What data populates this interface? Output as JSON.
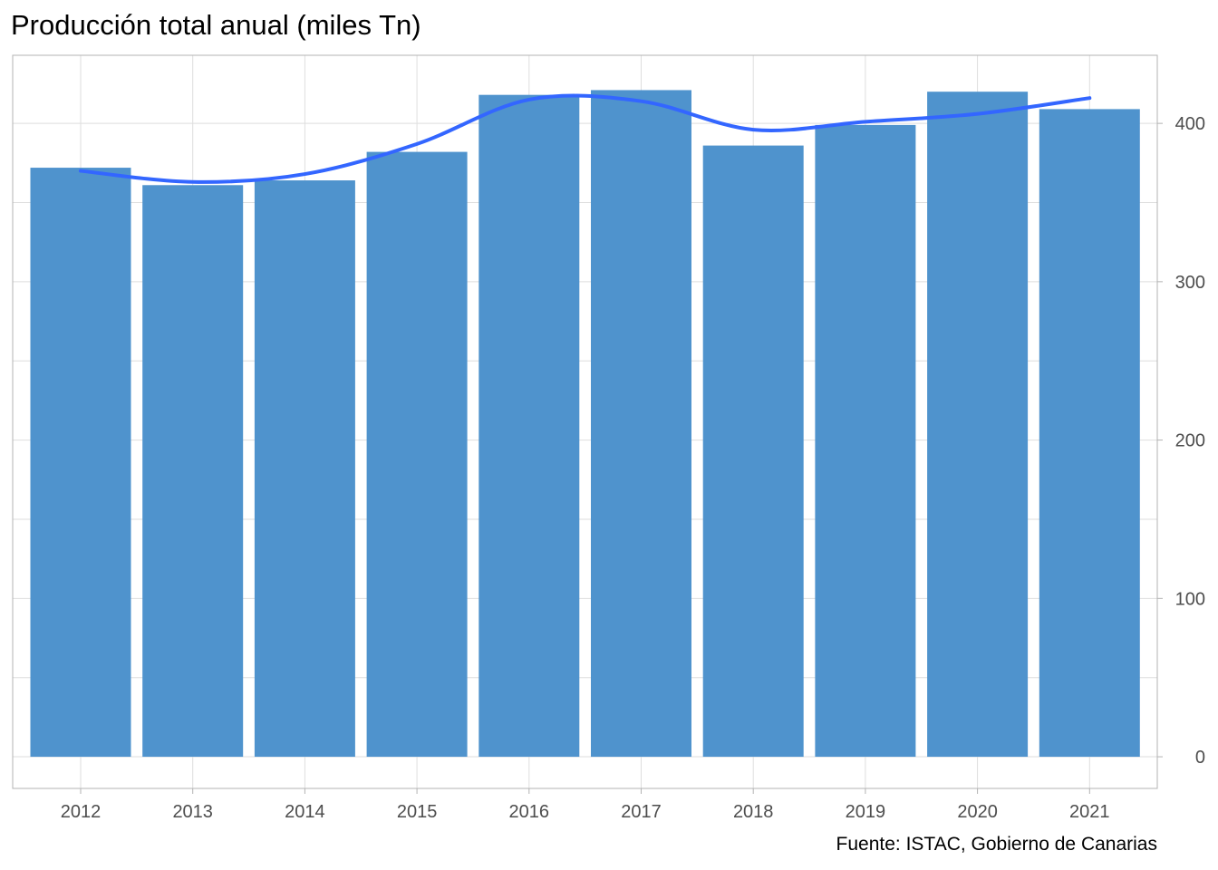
{
  "chart_data": {
    "type": "bar",
    "title": "Producción total anual (miles Tn)",
    "caption": "Fuente: ISTAC, Gobierno de Canarias",
    "xlabel": "",
    "ylabel": "",
    "categories": [
      "2012",
      "2013",
      "2014",
      "2015",
      "2016",
      "2017",
      "2018",
      "2019",
      "2020",
      "2021"
    ],
    "values": [
      372,
      361,
      364,
      382,
      418,
      421,
      386,
      399,
      420,
      409
    ],
    "trend": {
      "type": "smooth",
      "values": [
        370,
        363,
        368,
        387,
        415,
        414,
        396,
        401,
        406,
        416
      ]
    },
    "ylim": [
      -20,
      443
    ],
    "yticks": [
      0,
      100,
      200,
      300,
      400
    ],
    "y_axis_position": "right",
    "grid": true,
    "colors": {
      "bar": "#4f93cd",
      "trend": "#3366ff",
      "grid": "#dedede",
      "border": "#b3b3b3",
      "tick_text": "#4d4d4d"
    }
  }
}
